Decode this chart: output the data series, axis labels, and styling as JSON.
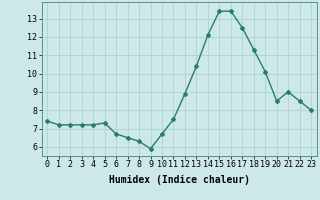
{
  "x": [
    0,
    1,
    2,
    3,
    4,
    5,
    6,
    7,
    8,
    9,
    10,
    11,
    12,
    13,
    14,
    15,
    16,
    17,
    18,
    19,
    20,
    21,
    22,
    23
  ],
  "y": [
    7.4,
    7.2,
    7.2,
    7.2,
    7.2,
    7.3,
    6.7,
    6.5,
    6.3,
    5.9,
    6.7,
    7.5,
    8.9,
    10.4,
    12.1,
    13.4,
    13.4,
    12.5,
    11.3,
    10.1,
    8.5,
    9.0,
    8.5,
    8.0
  ],
  "line_color": "#2a7d6e",
  "marker": "D",
  "marker_size": 2.0,
  "line_width": 1.0,
  "background_color": "#cce8e8",
  "grid_color": "#a8cece",
  "xlabel": "Humidex (Indice chaleur)",
  "xlabel_fontsize": 7,
  "tick_fontsize": 6,
  "yticks": [
    6,
    7,
    8,
    9,
    10,
    11,
    12,
    13
  ],
  "ylim": [
    5.5,
    13.9
  ],
  "xlim": [
    -0.5,
    23.5
  ]
}
